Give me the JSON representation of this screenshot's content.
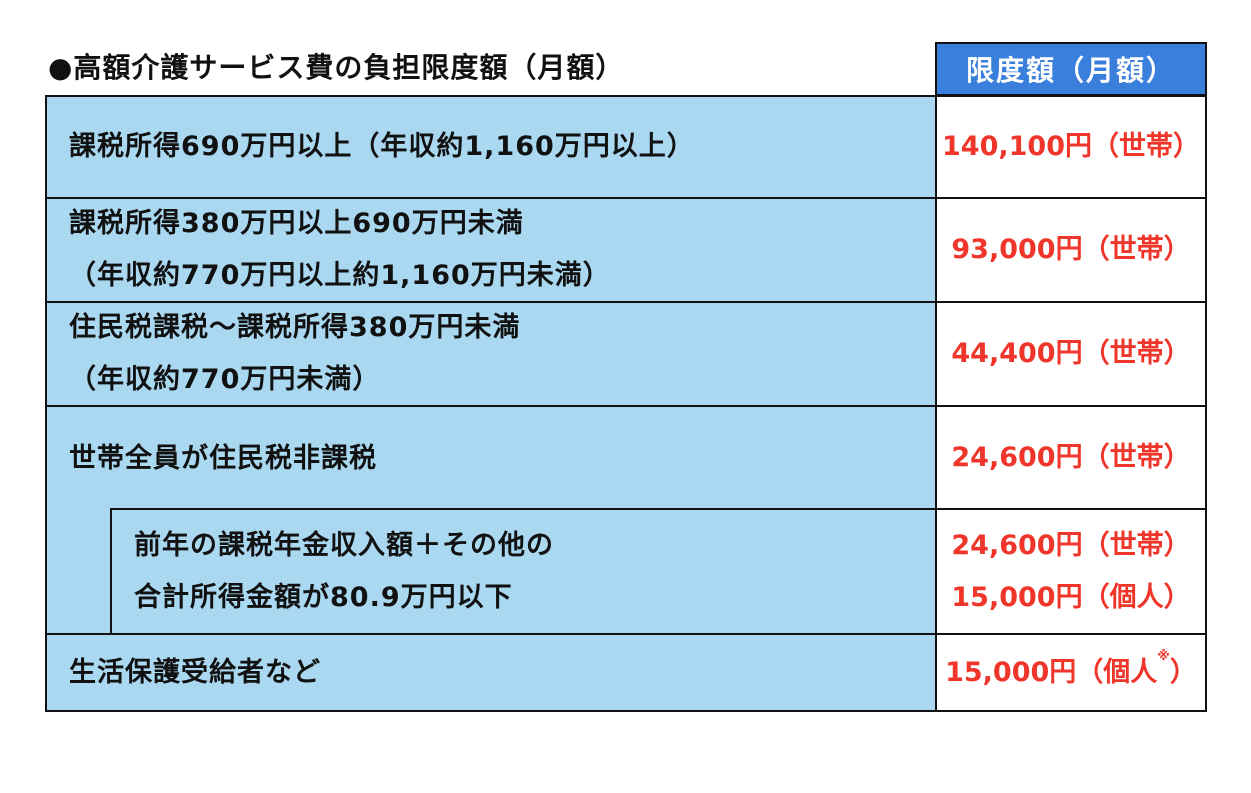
{
  "title": "●高額介護サービス費の負担限度額（月額）",
  "header": "限度額（月額）",
  "rows": [
    {
      "lines": [
        "課税所得690万円以上（年収約1,160万円以上）"
      ],
      "limits": [
        "140,100円（世帯）"
      ]
    },
    {
      "lines": [
        "課税所得380万円以上690万円未満",
        "（年収約770万円以上約1,160万円未満）"
      ],
      "limits": [
        "93,000円（世帯）"
      ]
    },
    {
      "lines": [
        "住民税課税～課税所得380万円未満",
        "（年収約770万円未満）"
      ],
      "limits": [
        "44,400円（世帯）"
      ]
    },
    {
      "lines": [
        "世帯全員が住民税非課税"
      ],
      "limits": [
        "24,600円（世帯）"
      ]
    },
    {
      "lines": [
        "前年の課税年金収入額＋その他の",
        "合計所得金額が80.9万円以下"
      ],
      "limits": [
        "24,600円（世帯）",
        "15,000円（個人）"
      ]
    },
    {
      "lines": [
        "生活保護受給者など"
      ],
      "limits": [
        "15,000円（個人"
      ],
      "limit_suffix": "）",
      "note_mark": "※"
    }
  ],
  "colors": {
    "header_bg": "#3a7fdc",
    "left_bg": "#a9d8f0",
    "amount": "#f0362a"
  }
}
